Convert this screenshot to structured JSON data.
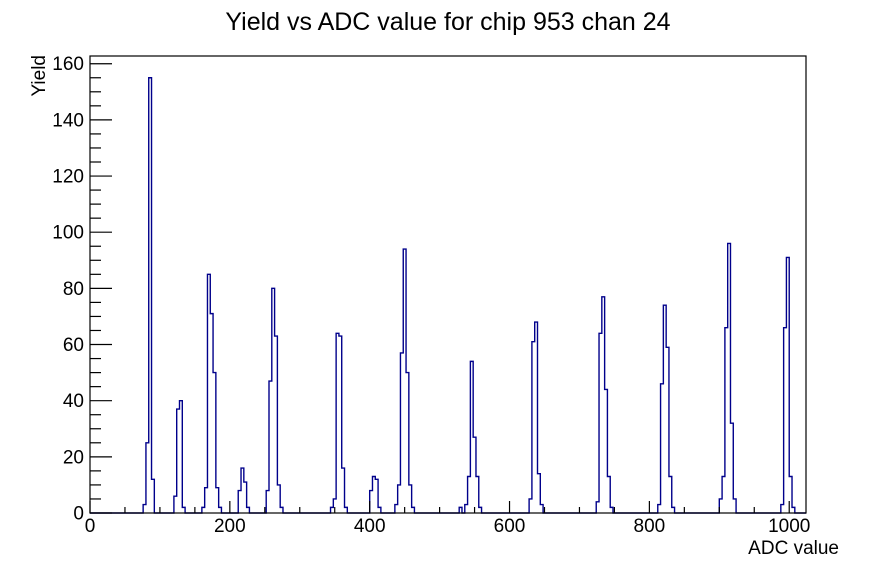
{
  "chart_data": {
    "type": "bar",
    "title": "Yield vs ADC value for chip 953 chan 24",
    "xlabel": "ADC value",
    "ylabel": "Yield",
    "xlim": [
      0,
      1024
    ],
    "ylim": [
      0,
      162.75
    ],
    "x_major_step": 200,
    "x_minor_step": 50,
    "x_tick_labels": [
      0,
      200,
      400,
      600,
      800,
      1000
    ],
    "y_major_step": 20,
    "y_minor_step": 5,
    "y_tick_labels": [
      0,
      20,
      40,
      60,
      80,
      100,
      120,
      140,
      160
    ],
    "grid": false,
    "legend": "none",
    "line_color": "#00008b",
    "frame_color": "#000000",
    "text_color": "#000000",
    "background_color": "#ffffff",
    "bin_width": 4,
    "bins": [
      [
        76,
        3
      ],
      [
        80,
        25
      ],
      [
        84,
        155
      ],
      [
        88,
        12
      ],
      [
        120,
        6
      ],
      [
        124,
        37
      ],
      [
        128,
        40
      ],
      [
        132,
        2
      ],
      [
        160,
        2
      ],
      [
        164,
        9
      ],
      [
        168,
        85
      ],
      [
        172,
        71
      ],
      [
        176,
        50
      ],
      [
        180,
        9
      ],
      [
        184,
        2
      ],
      [
        212,
        8
      ],
      [
        216,
        16
      ],
      [
        220,
        11
      ],
      [
        224,
        2
      ],
      [
        252,
        8
      ],
      [
        256,
        47
      ],
      [
        260,
        80
      ],
      [
        264,
        63
      ],
      [
        268,
        10
      ],
      [
        272,
        2
      ],
      [
        344,
        2
      ],
      [
        348,
        5
      ],
      [
        352,
        64
      ],
      [
        356,
        63
      ],
      [
        360,
        16
      ],
      [
        364,
        2
      ],
      [
        400,
        8
      ],
      [
        404,
        13
      ],
      [
        408,
        12
      ],
      [
        412,
        2
      ],
      [
        436,
        3
      ],
      [
        440,
        10
      ],
      [
        444,
        57
      ],
      [
        448,
        94
      ],
      [
        452,
        50
      ],
      [
        456,
        10
      ],
      [
        460,
        2
      ],
      [
        528,
        2
      ],
      [
        536,
        3
      ],
      [
        540,
        13
      ],
      [
        544,
        54
      ],
      [
        548,
        27
      ],
      [
        552,
        13
      ],
      [
        556,
        2
      ],
      [
        628,
        5
      ],
      [
        632,
        61
      ],
      [
        636,
        68
      ],
      [
        640,
        14
      ],
      [
        644,
        3
      ],
      [
        724,
        4
      ],
      [
        728,
        64
      ],
      [
        732,
        77
      ],
      [
        736,
        44
      ],
      [
        740,
        13
      ],
      [
        744,
        2
      ],
      [
        812,
        3
      ],
      [
        816,
        46
      ],
      [
        820,
        74
      ],
      [
        824,
        59
      ],
      [
        828,
        13
      ],
      [
        832,
        2
      ],
      [
        900,
        5
      ],
      [
        904,
        13
      ],
      [
        908,
        66
      ],
      [
        912,
        96
      ],
      [
        916,
        32
      ],
      [
        920,
        5
      ],
      [
        988,
        3
      ],
      [
        992,
        66
      ],
      [
        996,
        91
      ],
      [
        1000,
        13
      ],
      [
        1004,
        2
      ]
    ]
  }
}
